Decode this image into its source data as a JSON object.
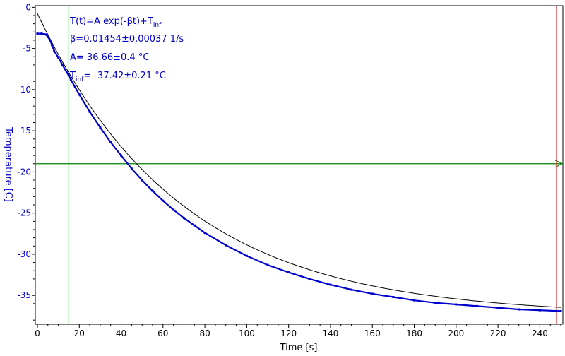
{
  "chart_data": {
    "type": "scatter",
    "xlabel": "Time [s]",
    "ylabel": "Temperature [C]",
    "xlim": [
      -1,
      251
    ],
    "ylim": [
      -38.5,
      0.2
    ],
    "xticks": [
      0,
      20,
      40,
      60,
      80,
      100,
      120,
      140,
      160,
      180,
      200,
      220,
      240
    ],
    "yticks": [
      0,
      -5,
      -10,
      -15,
      -20,
      -25,
      -30,
      -35
    ],
    "grid": false,
    "colors": {
      "data": "#0000cc",
      "fit": "#000000",
      "axis_text": "#0000cc",
      "x_axis_text": "#000000",
      "green_cursor": "#00cc00",
      "horizontal_marker": "#008000",
      "red_marker": "#cc0000"
    },
    "fit": {
      "formula": "T(t)=A exp(-βt)+T",
      "formula_sub": "inf",
      "beta_text": "β=0.01454±0.00037 1/s",
      "A_text": "A= 36.66±0.4 °C",
      "tinf_prefix": "T",
      "tinf_sub": "inf",
      "tinf_text": "= -37.42±0.21 °C",
      "A": 36.66,
      "beta": 0.01454,
      "T_inf": -37.42
    },
    "series": [
      {
        "x": [
          0,
          2,
          4,
          5,
          6,
          7,
          8,
          10,
          12,
          14,
          15,
          16,
          18,
          20,
          25,
          30,
          35,
          40,
          45,
          50,
          55,
          60,
          65,
          70,
          75,
          80,
          90,
          100,
          110,
          120,
          130,
          140,
          150,
          160,
          170,
          180,
          190,
          200,
          210,
          220,
          230,
          240,
          250
        ],
        "y": [
          -3.2,
          -3.2,
          -3.3,
          -3.6,
          -4.0,
          -4.6,
          -5.3,
          -6.1,
          -7.0,
          -7.9,
          -8.3,
          -8.8,
          -9.7,
          -10.6,
          -12.7,
          -14.6,
          -16.4,
          -18.0,
          -19.6,
          -21.0,
          -22.3,
          -23.5,
          -24.6,
          -25.6,
          -26.5,
          -27.4,
          -28.9,
          -30.2,
          -31.3,
          -32.2,
          -33.0,
          -33.7,
          -34.3,
          -34.8,
          -35.2,
          -35.6,
          -35.9,
          -36.1,
          -36.3,
          -36.5,
          -36.7,
          -36.8,
          -36.9
        ]
      }
    ],
    "markers": {
      "vertical_green_x": 15,
      "horizontal_y": -19,
      "vertical_red_x": 248
    }
  }
}
